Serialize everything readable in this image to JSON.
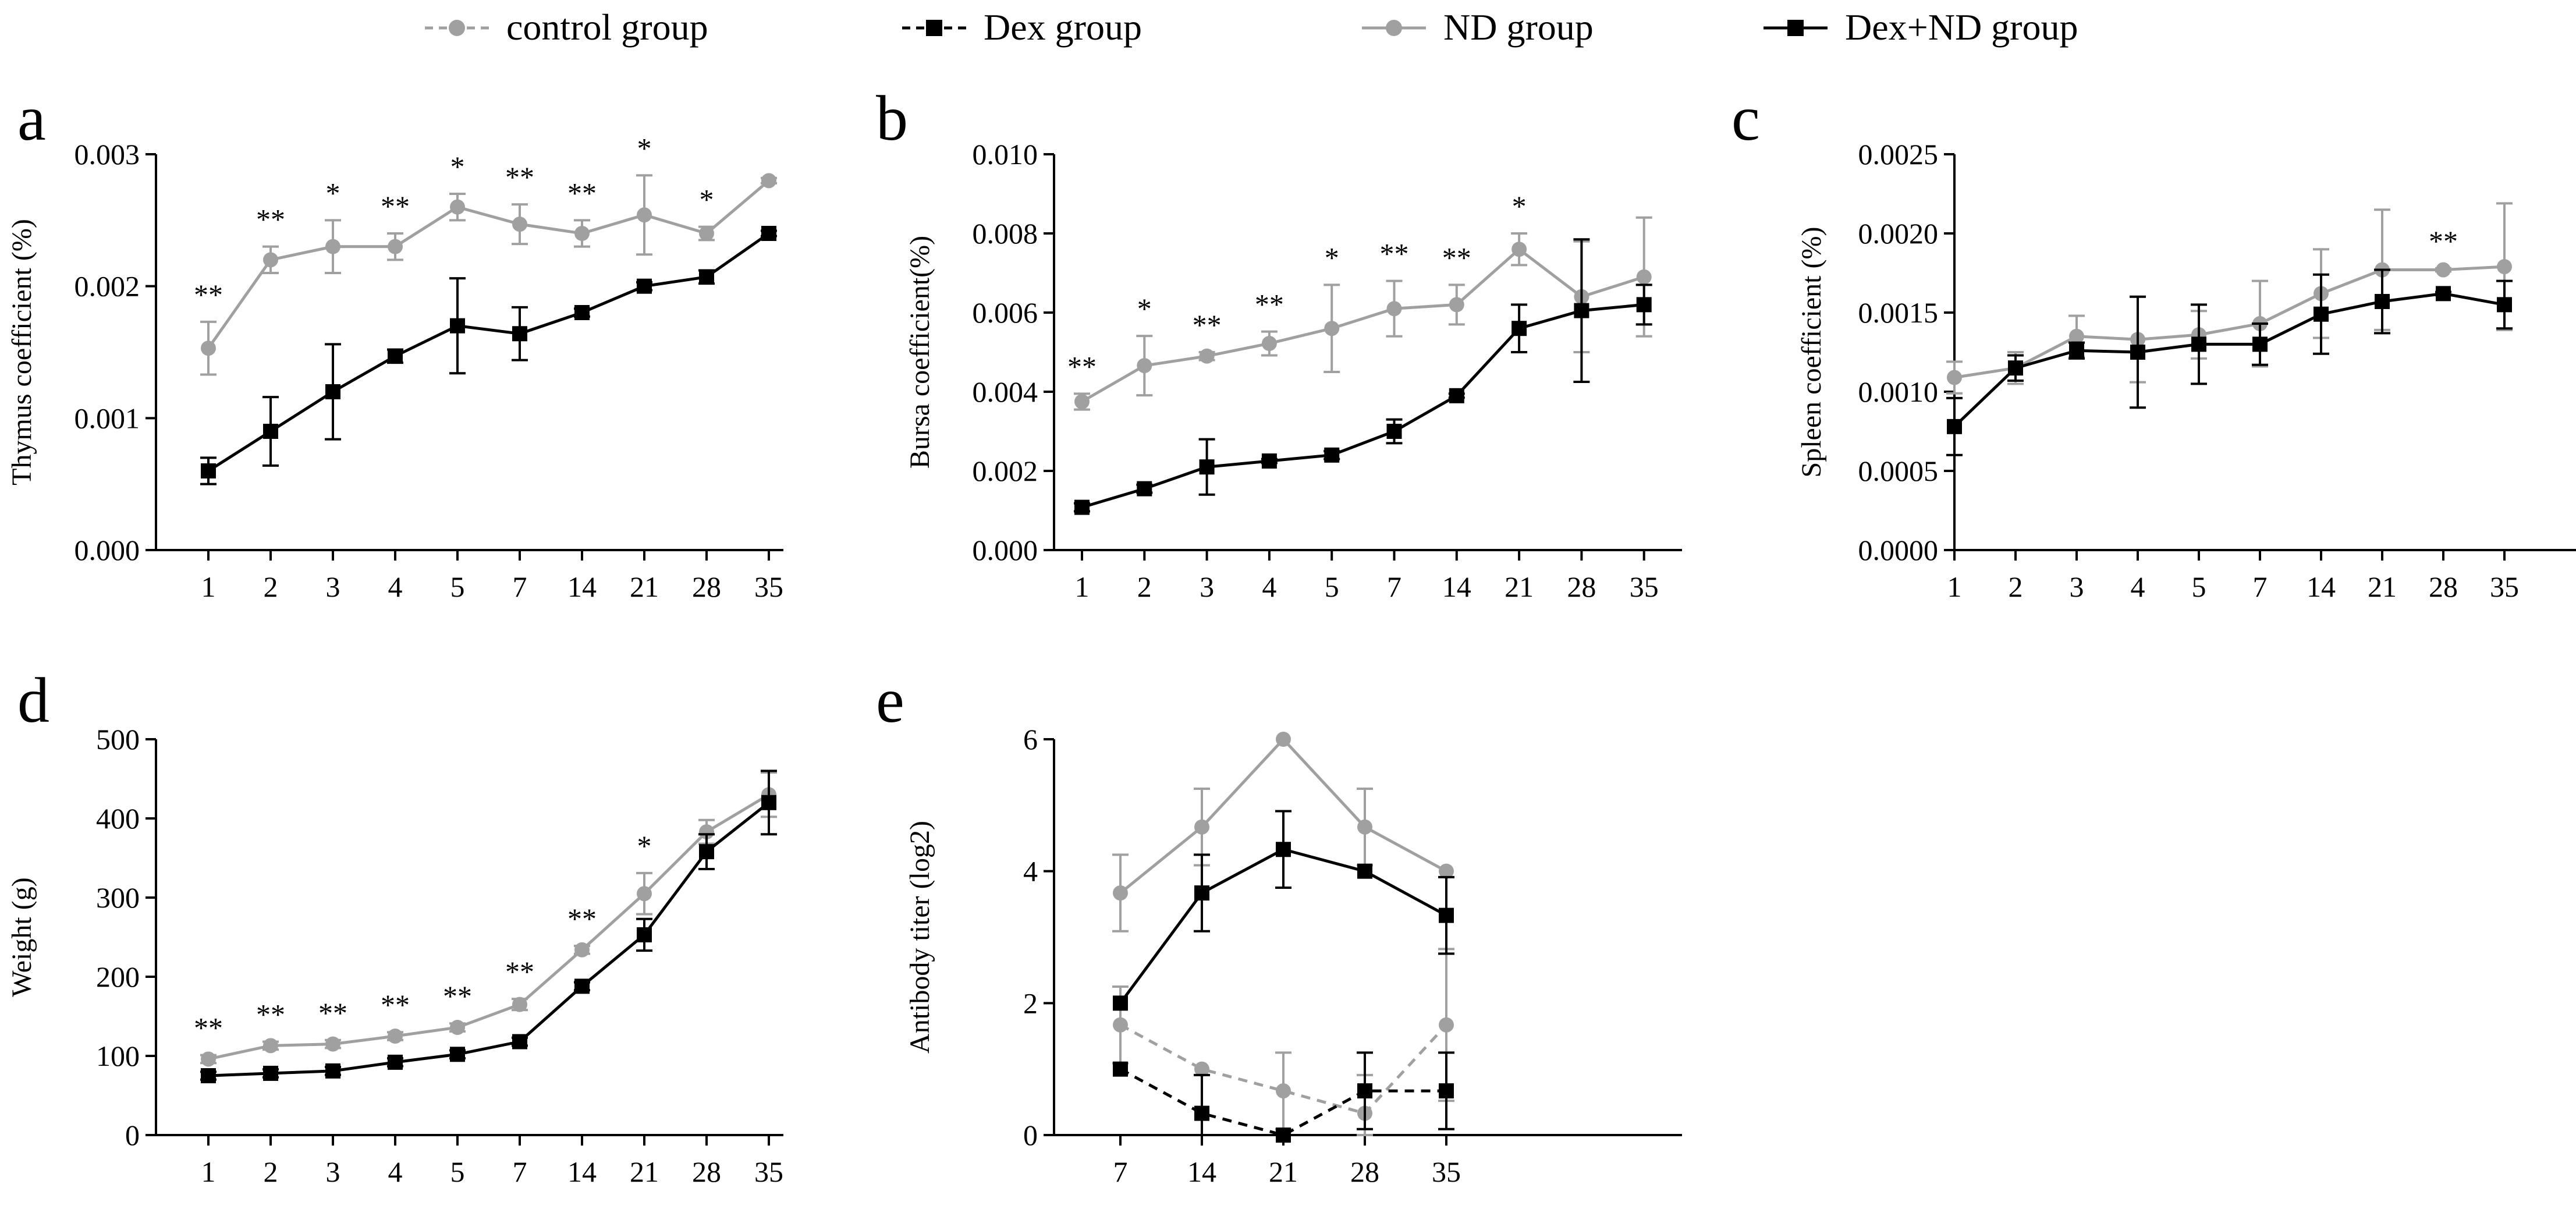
{
  "legend": [
    {
      "key": "control",
      "label": "control group",
      "color": "#a0a0a0",
      "dashed": true,
      "marker": "circle"
    },
    {
      "key": "dex",
      "label": "Dex group",
      "color": "#000000",
      "dashed": true,
      "marker": "square"
    },
    {
      "key": "nd",
      "label": "ND group",
      "color": "#a0a0a0",
      "dashed": false,
      "marker": "circle"
    },
    {
      "key": "dexnd",
      "label": "Dex+ND group",
      "color": "#000000",
      "dashed": false,
      "marker": "square"
    }
  ],
  "chart_data": [
    {
      "panel": "a",
      "type": "line",
      "ylabel": "Thymus coefficient (%)",
      "categories": [
        "1",
        "2",
        "3",
        "4",
        "5",
        "7",
        "14",
        "21",
        "28",
        "35"
      ],
      "yticks": [
        "0.000",
        "0.001",
        "0.002",
        "0.003"
      ],
      "ylim": [
        0,
        0.003
      ],
      "series": [
        {
          "name": "ND group",
          "values": [
            0.00153,
            0.0022,
            0.0023,
            0.0023,
            0.0026,
            0.00247,
            0.0024,
            0.00254,
            0.0024,
            0.0028
          ],
          "errors": [
            0.0002,
            0.0001,
            0.0002,
            0.0001,
            0.0001,
            0.00015,
            0.0001,
            0.0003,
            5e-05,
            2e-05
          ]
        },
        {
          "name": "Dex+ND group",
          "values": [
            0.0006,
            0.0009,
            0.0012,
            0.00147,
            0.0017,
            0.00164,
            0.0018,
            0.002,
            0.00207,
            0.0024
          ],
          "errors": [
            0.0001,
            0.00026,
            0.00036,
            5e-05,
            0.00036,
            0.0002,
            3e-05,
            3e-05,
            5e-05,
            2e-05
          ]
        }
      ],
      "annotations": [
        "**",
        "**",
        "*",
        "**",
        "*",
        "**",
        "**",
        "*",
        "*",
        ""
      ]
    },
    {
      "panel": "b",
      "type": "line",
      "ylabel": "Bursa coefficient(%)",
      "categories": [
        "1",
        "2",
        "3",
        "4",
        "5",
        "7",
        "14",
        "21",
        "28",
        "35"
      ],
      "yticks": [
        "0.000",
        "0.002",
        "0.004",
        "0.006",
        "0.008",
        "0.010"
      ],
      "ylim": [
        0,
        0.01
      ],
      "series": [
        {
          "name": "ND group",
          "values": [
            0.00375,
            0.00466,
            0.0049,
            0.00522,
            0.0056,
            0.0061,
            0.0062,
            0.0076,
            0.0064,
            0.0069
          ],
          "errors": [
            0.0002,
            0.00075,
            0.0001,
            0.0003,
            0.0011,
            0.0007,
            0.0005,
            0.0004,
            0.0014,
            0.0015
          ]
        },
        {
          "name": "Dex+ND group",
          "values": [
            0.00108,
            0.00155,
            0.0021,
            0.00225,
            0.0024,
            0.003,
            0.0039,
            0.0056,
            0.00605,
            0.0062
          ],
          "errors": [
            0.0001,
            0.0001,
            0.0007,
            5e-05,
            0.0001,
            0.0003,
            5e-05,
            0.0006,
            0.0018,
            0.0005
          ]
        }
      ],
      "annotations": [
        "**",
        "*",
        "**",
        "**",
        "*",
        "**",
        "**",
        "*",
        "",
        ""
      ]
    },
    {
      "panel": "c",
      "type": "line",
      "ylabel": "Spleen coefficient (%)",
      "categories": [
        "1",
        "2",
        "3",
        "4",
        "5",
        "7",
        "14",
        "21",
        "28",
        "35"
      ],
      "yticks": [
        "0.0000",
        "0.0005",
        "0.0010",
        "0.0015",
        "0.0020",
        "0.0025"
      ],
      "ylim": [
        0,
        0.0025
      ],
      "series": [
        {
          "name": "ND group",
          "values": [
            0.00109,
            0.00115,
            0.00135,
            0.00133,
            0.00136,
            0.00143,
            0.00162,
            0.00177,
            0.00177,
            0.00179
          ],
          "errors": [
            0.0001,
            0.0001,
            0.00013,
            0.00027,
            0.00015,
            0.00027,
            0.00028,
            0.00038,
            1e-05,
            0.0004
          ]
        },
        {
          "name": "Dex+ND group",
          "values": [
            0.00078,
            0.00115,
            0.00126,
            0.00125,
            0.0013,
            0.0013,
            0.00149,
            0.00157,
            0.00162,
            0.00155
          ],
          "errors": [
            0.00018,
            8e-05,
            5e-05,
            0.00035,
            0.00025,
            0.00013,
            0.00025,
            0.0002,
            1e-05,
            0.00015
          ]
        }
      ],
      "annotations": [
        "",
        "",
        "",
        "",
        "",
        "",
        "",
        "",
        "**",
        ""
      ]
    },
    {
      "panel": "d",
      "type": "line",
      "ylabel": "Weight (g)",
      "categories": [
        "1",
        "2",
        "3",
        "4",
        "5",
        "7",
        "14",
        "21",
        "28",
        "35"
      ],
      "yticks": [
        "0",
        "100",
        "200",
        "300",
        "400",
        "500"
      ],
      "ylim": [
        0,
        500
      ],
      "series": [
        {
          "name": "ND group",
          "values": [
            96,
            113,
            115,
            125,
            136,
            165,
            234,
            305,
            383,
            430
          ],
          "errors": [
            5,
            5,
            5,
            5,
            5,
            7,
            5,
            26,
            15,
            28
          ]
        },
        {
          "name": "Dex+ND group",
          "values": [
            75,
            78,
            81,
            92,
            102,
            118,
            188,
            253,
            358,
            420
          ],
          "errors": [
            5,
            5,
            5,
            5,
            5,
            5,
            5,
            20,
            22,
            40
          ]
        }
      ],
      "annotations": [
        "**",
        "**",
        "**",
        "**",
        "**",
        "**",
        "**",
        "*",
        "",
        ""
      ]
    },
    {
      "panel": "e",
      "type": "line",
      "ylabel": "Antibody titer (log2)",
      "categories": [
        "7",
        "14",
        "21",
        "28",
        "35"
      ],
      "yticks": [
        "0",
        "2",
        "4",
        "6"
      ],
      "ylim": [
        0,
        6
      ],
      "series": [
        {
          "name": "control group",
          "values": [
            1.67,
            1.0,
            0.67,
            0.33,
            1.67
          ],
          "errors": [
            0.58,
            0.0,
            0.58,
            0.58,
            1.15
          ]
        },
        {
          "name": "Dex group",
          "values": [
            1.0,
            0.33,
            0.0,
            0.67,
            0.67
          ],
          "errors": [
            0.0,
            0.58,
            0.0,
            0.58,
            0.58
          ]
        },
        {
          "name": "ND group",
          "values": [
            3.67,
            4.67,
            6.0,
            4.67,
            4.0
          ],
          "errors": [
            0.58,
            0.58,
            0.0,
            0.58,
            0.0
          ]
        },
        {
          "name": "Dex+ND group",
          "values": [
            2.0,
            3.67,
            4.33,
            4.0,
            3.33
          ],
          "errors": [
            0.0,
            0.58,
            0.58,
            0.0,
            0.58
          ]
        }
      ],
      "annotations": []
    }
  ]
}
